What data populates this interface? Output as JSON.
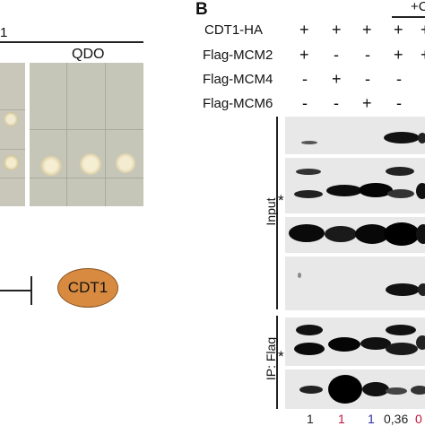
{
  "panel_a": {
    "top_number": "1",
    "qdo_label": "QDO",
    "cdt1_node": "CDT1"
  },
  "panel_b": {
    "letter": "B",
    "top_right_fragment": "+C",
    "rows": [
      {
        "label": "CDT1-HA",
        "signs": [
          "+",
          "+",
          "+",
          "+",
          "+"
        ]
      },
      {
        "label": "Flag-MCM2",
        "signs": [
          "+",
          "-",
          "-",
          "+",
          "+"
        ]
      },
      {
        "label": "Flag-MCM4",
        "signs": [
          "-",
          "+",
          "-",
          "-",
          ""
        ]
      },
      {
        "label": "Flag-MCM6",
        "signs": [
          "-",
          "-",
          "+",
          "-",
          ""
        ]
      }
    ],
    "input_label": "Input",
    "ip_label": "IP: Flag",
    "asterisk": "*",
    "quant": [
      {
        "value": "1",
        "color": "#222222"
      },
      {
        "value": "1",
        "color": "#c0143c"
      },
      {
        "value": "1",
        "color": "#2a2aa8"
      },
      {
        "value": "0,36",
        "color": "#222222"
      },
      {
        "value": "0",
        "color": "#c0143c"
      }
    ]
  }
}
